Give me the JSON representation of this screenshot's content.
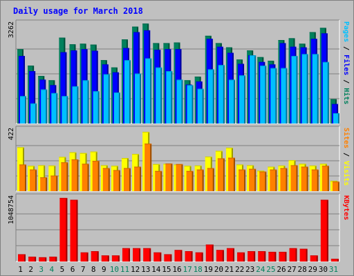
{
  "title": "Daily usage for March 2018",
  "colors": {
    "hits": "#00805c",
    "files": "#0000ff",
    "pages": "#00c0ff",
    "visits": "#ffff00",
    "sites": "#ff8000",
    "kbytes": "#ff0000",
    "weekend_label": "#00805c",
    "weekday_label": "#000000"
  },
  "chart_data": [
    {
      "type": "bar",
      "panel": "hits-files-pages",
      "ymax_label": "3262",
      "ylim": [
        0,
        3262
      ],
      "grid": true,
      "categories": [
        "1",
        "2",
        "3",
        "4",
        "5",
        "6",
        "7",
        "8",
        "9",
        "10",
        "11",
        "12",
        "13",
        "14",
        "15",
        "16",
        "17",
        "18",
        "19",
        "20",
        "21",
        "22",
        "23",
        "24",
        "25",
        "26",
        "27",
        "28",
        "29",
        "30",
        "31"
      ],
      "legend_parts": [
        "Pages",
        "Files",
        "Hits"
      ],
      "series": [
        {
          "name": "Hits",
          "values": [
            2440,
            1900,
            1560,
            1420,
            2820,
            2600,
            2620,
            2590,
            2080,
            1840,
            2760,
            3180,
            3280,
            2640,
            2640,
            2660,
            1420,
            1540,
            2880,
            2640,
            2500,
            2100,
            2400,
            2180,
            2060,
            2740,
            2800,
            2620,
            3000,
            3140,
            800
          ]
        },
        {
          "name": "Files",
          "values": [
            2220,
            1720,
            1440,
            1260,
            2340,
            2400,
            2440,
            2390,
            1940,
            1680,
            2480,
            3000,
            3060,
            2420,
            2440,
            2440,
            1280,
            1380,
            2780,
            2520,
            2320,
            1960,
            2240,
            2020,
            1940,
            2640,
            2520,
            2500,
            2780,
            2960,
            640
          ]
        },
        {
          "name": "Pages",
          "values": [
            900,
            660,
            1120,
            1000,
            900,
            1220,
            1420,
            1060,
            1620,
            1020,
            2080,
            1640,
            2140,
            1840,
            1720,
            1440,
            1260,
            1140,
            1780,
            1920,
            1440,
            1580,
            2240,
            1900,
            1820,
            1820,
            2220,
            2280,
            2280,
            2020,
            340
          ]
        }
      ]
    },
    {
      "type": "bar",
      "panel": "visits-sites",
      "ymax_label": "422",
      "ylim": [
        0,
        422
      ],
      "grid": true,
      "legend_parts": [
        "Sites",
        "Visits"
      ],
      "series": [
        {
          "name": "Visits",
          "values": [
            305,
            176,
            180,
            178,
            238,
            270,
            265,
            275,
            180,
            176,
            230,
            258,
            412,
            188,
            190,
            185,
            176,
            178,
            240,
            280,
            302,
            185,
            180,
            142,
            170,
            178,
            215,
            190,
            178,
            190,
            72
          ]
        },
        {
          "name": "Sites",
          "values": [
            185,
            150,
            96,
            108,
            200,
            220,
            190,
            210,
            160,
            146,
            160,
            170,
            330,
            140,
            192,
            188,
            140,
            150,
            160,
            228,
            232,
            150,
            155,
            136,
            150,
            160,
            180,
            170,
            150,
            176,
            66
          ]
        }
      ]
    },
    {
      "type": "bar",
      "panel": "kbytes",
      "ymax_label": "1048754",
      "ylim": [
        0,
        1048754
      ],
      "grid": true,
      "legend_parts": [
        "KBytes"
      ],
      "series": [
        {
          "name": "KBytes",
          "values": [
            120000,
            80000,
            70000,
            80000,
            1050000,
            1020000,
            150000,
            170000,
            100000,
            100000,
            220000,
            220000,
            220000,
            150000,
            120000,
            190000,
            170000,
            150000,
            280000,
            190000,
            220000,
            150000,
            170000,
            170000,
            160000,
            160000,
            220000,
            210000,
            100000,
            1020000,
            45000
          ]
        }
      ]
    }
  ],
  "x_labels": {
    "weekend_days": [
      "3",
      "4",
      "10",
      "11",
      "17",
      "18",
      "24",
      "25",
      "31"
    ]
  }
}
